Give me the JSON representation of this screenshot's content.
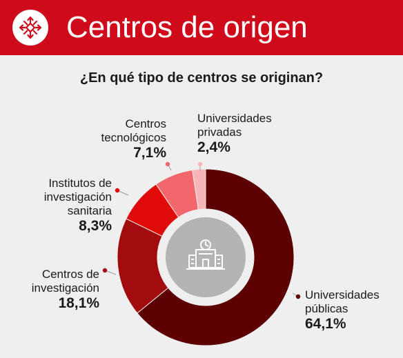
{
  "header": {
    "title": "Centros de origen",
    "logo_icon": "network-arrows-icon"
  },
  "colors": {
    "header": "#cf0a1a",
    "background": "#efefef",
    "center_circle": "#b4b4b4"
  },
  "chart_data": {
    "type": "pie",
    "title": "¿En qué tipo de centros se originan?",
    "center_icon": "building-icon",
    "slices": [
      {
        "label_lines": [
          "Universidades",
          "públicas"
        ],
        "value": 64.1,
        "value_label": "64,1%",
        "color": "#5c0002"
      },
      {
        "label_lines": [
          "Centros de",
          "investigación"
        ],
        "value": 18.1,
        "value_label": "18,1%",
        "color": "#a30c0e"
      },
      {
        "label_lines": [
          "Institutos de",
          "investigación",
          "sanitaria"
        ],
        "value": 8.3,
        "value_label": "8,3%",
        "color": "#e00a0a"
      },
      {
        "label_lines": [
          "Centros",
          "tecnológicos"
        ],
        "value": 7.1,
        "value_label": "7,1%",
        "color": "#f2676b"
      },
      {
        "label_lines": [
          "Universidades",
          "privadas"
        ],
        "value": 2.4,
        "value_label": "2,4%",
        "color": "#f7b5b7"
      }
    ]
  }
}
